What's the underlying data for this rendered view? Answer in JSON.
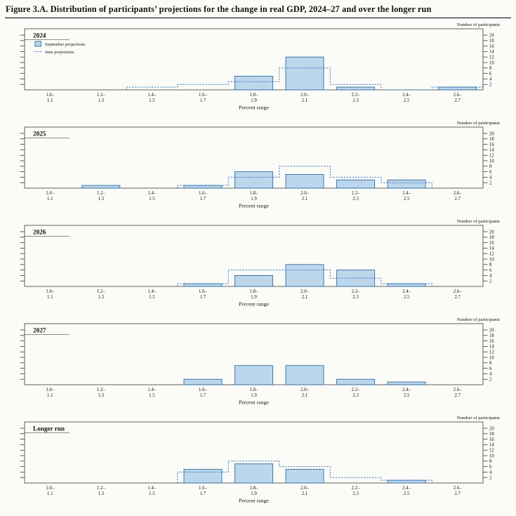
{
  "figure": {
    "title": "Figure 3.A. Distribution of participants’ projections for the change in real GDP, 2024–27 and over the longer run",
    "y_axis_label": "Number of participants",
    "x_axis_label": "Percent range",
    "legend": {
      "september": "September projections",
      "june": "June projections"
    }
  },
  "colors": {
    "bar_fill": "#bcd6eb",
    "bar_stroke": "#2e6da4",
    "june_line": "#3b7bbf",
    "frame": "#222222",
    "background": "#fbfbf8"
  },
  "chart_data": [
    {
      "type": "bar",
      "title": "2024",
      "categories": [
        "1.0–1.1",
        "1.2–1.3",
        "1.4–1.5",
        "1.6–1.7",
        "1.8–1.9",
        "2.0–2.1",
        "2.2–2.3",
        "2.4–2.5",
        "2.6–2.7"
      ],
      "series": [
        {
          "name": "September projections",
          "values": [
            0,
            0,
            0,
            0,
            5,
            12,
            1,
            0,
            1
          ]
        },
        {
          "name": "June projections",
          "values": [
            0,
            0,
            1,
            2,
            3,
            8,
            2,
            0,
            1
          ]
        }
      ],
      "xlabel": "Percent range",
      "ylabel": "Number of participants",
      "ylim": [
        0,
        20
      ],
      "yticks": [
        2,
        4,
        6,
        8,
        10,
        12,
        14,
        16,
        18,
        20
      ]
    },
    {
      "type": "bar",
      "title": "2025",
      "categories": [
        "1.0–1.1",
        "1.2–1.3",
        "1.4–1.5",
        "1.6–1.7",
        "1.8–1.9",
        "2.0–2.1",
        "2.2–2.3",
        "2.4–2.5",
        "2.6–2.7"
      ],
      "series": [
        {
          "name": "September projections",
          "values": [
            0,
            1,
            0,
            1,
            6,
            5,
            3,
            3,
            0
          ]
        },
        {
          "name": "June projections",
          "values": [
            0,
            0,
            0,
            1,
            4,
            8,
            4,
            2,
            0
          ]
        }
      ],
      "xlabel": "Percent range",
      "ylabel": "Number of participants",
      "ylim": [
        0,
        20
      ],
      "yticks": [
        2,
        4,
        6,
        8,
        10,
        12,
        14,
        16,
        18,
        20
      ]
    },
    {
      "type": "bar",
      "title": "2026",
      "categories": [
        "1.0–1.1",
        "1.2–1.3",
        "1.4–1.5",
        "1.6–1.7",
        "1.8–1.9",
        "2.0–2.1",
        "2.2–2.3",
        "2.4–2.5",
        "2.6–2.7"
      ],
      "series": [
        {
          "name": "September projections",
          "values": [
            0,
            0,
            0,
            1,
            4,
            8,
            6,
            1,
            0
          ]
        },
        {
          "name": "June projections",
          "values": [
            0,
            0,
            0,
            1,
            6,
            6,
            3,
            1,
            0
          ]
        }
      ],
      "xlabel": "Percent range",
      "ylabel": "Number of participants",
      "ylim": [
        0,
        20
      ],
      "yticks": [
        2,
        4,
        6,
        8,
        10,
        12,
        14,
        16,
        18,
        20
      ]
    },
    {
      "type": "bar",
      "title": "2027",
      "categories": [
        "1.0–1.1",
        "1.2–1.3",
        "1.4–1.5",
        "1.6–1.7",
        "1.8–1.9",
        "2.0–2.1",
        "2.2–2.3",
        "2.4–2.5",
        "2.6–2.7"
      ],
      "series": [
        {
          "name": "September projections",
          "values": [
            0,
            0,
            0,
            2,
            7,
            7,
            2,
            1,
            0
          ]
        }
      ],
      "xlabel": "Percent range",
      "ylabel": "Number of participants",
      "ylim": [
        0,
        20
      ],
      "yticks": [
        2,
        4,
        6,
        8,
        10,
        12,
        14,
        16,
        18,
        20
      ]
    },
    {
      "type": "bar",
      "title": "Longer run",
      "categories": [
        "1.0–1.1",
        "1.2–1.3",
        "1.4–1.5",
        "1.6–1.7",
        "1.8–1.9",
        "2.0–2.1",
        "2.2–2.3",
        "2.4–2.5",
        "2.6–2.7"
      ],
      "series": [
        {
          "name": "September projections",
          "values": [
            0,
            0,
            0,
            5,
            7,
            5,
            0,
            1,
            0
          ]
        },
        {
          "name": "June projections",
          "values": [
            0,
            0,
            0,
            4,
            8,
            6,
            2,
            1,
            0
          ]
        }
      ],
      "xlabel": "Percent range",
      "ylabel": "Number of participants",
      "ylim": [
        0,
        20
      ],
      "yticks": [
        2,
        4,
        6,
        8,
        10,
        12,
        14,
        16,
        18,
        20
      ]
    }
  ]
}
